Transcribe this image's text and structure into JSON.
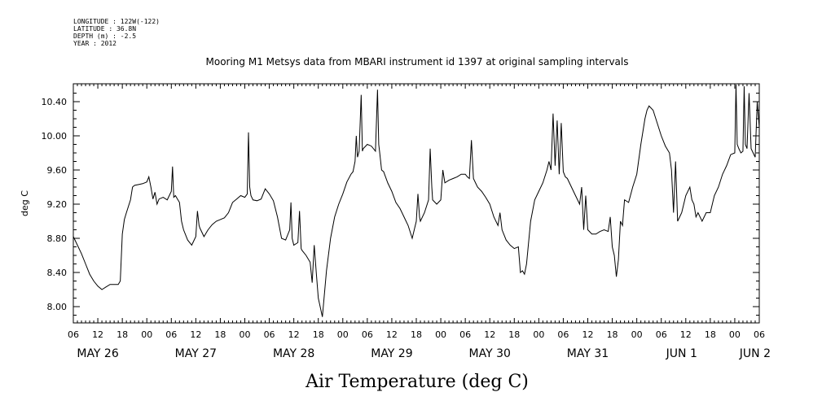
{
  "header": {
    "longitude": "LONGITUDE : 122W(-122)",
    "latitude": "LATITUDE : 36.8N",
    "depth": "DEPTH (m) : -2.5",
    "year": "YEAR : 2012"
  },
  "chart_data": {
    "type": "line",
    "title": "Mooring M1 Metsys data from MBARI instrument id 1397 at original sampling intervals",
    "xlabel": "Air Temperature (deg C)",
    "ylabel": "deg C",
    "ylim": [
      7.84,
      10.62
    ],
    "xlim": [
      6,
      174
    ],
    "x_units": "hours since May 26 00:00 (2012)",
    "yticks": [
      "8.00",
      "8.40",
      "8.80",
      "9.20",
      "9.60",
      "10.00",
      "10.40"
    ],
    "hour_ticks": [
      "06",
      "12",
      "18",
      "00",
      "06",
      "12",
      "18",
      "00",
      "06",
      "12",
      "18",
      "00",
      "06",
      "12",
      "18",
      "00",
      "06",
      "12",
      "18",
      "00",
      "06",
      "12",
      "18",
      "00",
      "06",
      "12",
      "18",
      "00",
      "06"
    ],
    "day_labels": [
      "MAY 26",
      "MAY 27",
      "MAY 28",
      "MAY 29",
      "MAY 30",
      "MAY 31",
      "JUN  1",
      "JUN  2"
    ],
    "grid": false,
    "series": [
      {
        "values": [
          [
            6.0,
            8.82
          ],
          [
            7.0,
            8.72
          ],
          [
            8.0,
            8.62
          ],
          [
            9.0,
            8.5
          ],
          [
            10.0,
            8.38
          ],
          [
            11.0,
            8.3
          ],
          [
            12.0,
            8.24
          ],
          [
            13.0,
            8.2
          ],
          [
            14.0,
            8.23
          ],
          [
            15.0,
            8.26
          ],
          [
            16.0,
            8.26
          ],
          [
            17.0,
            8.26
          ],
          [
            17.5,
            8.3
          ],
          [
            18.0,
            8.85
          ],
          [
            18.5,
            9.02
          ],
          [
            19.0,
            9.1
          ],
          [
            20.0,
            9.25
          ],
          [
            20.5,
            9.4
          ],
          [
            21.0,
            9.42
          ],
          [
            22.0,
            9.43
          ],
          [
            23.0,
            9.44
          ],
          [
            24.0,
            9.46
          ],
          [
            24.5,
            9.52
          ],
          [
            25.0,
            9.4
          ],
          [
            25.5,
            9.26
          ],
          [
            26.0,
            9.34
          ],
          [
            26.5,
            9.2
          ],
          [
            27.0,
            9.26
          ],
          [
            28.0,
            9.28
          ],
          [
            29.0,
            9.25
          ],
          [
            30.0,
            9.35
          ],
          [
            30.3,
            9.64
          ],
          [
            30.6,
            9.28
          ],
          [
            31.0,
            9.3
          ],
          [
            32.0,
            9.22
          ],
          [
            32.5,
            9.0
          ],
          [
            33.0,
            8.9
          ],
          [
            34.0,
            8.78
          ],
          [
            35.0,
            8.72
          ],
          [
            36.0,
            8.82
          ],
          [
            36.4,
            9.12
          ],
          [
            36.8,
            8.95
          ],
          [
            37.0,
            8.92
          ],
          [
            38.0,
            8.82
          ],
          [
            39.0,
            8.9
          ],
          [
            40.0,
            8.96
          ],
          [
            41.0,
            9.0
          ],
          [
            42.0,
            9.02
          ],
          [
            43.0,
            9.04
          ],
          [
            44.0,
            9.1
          ],
          [
            45.0,
            9.22
          ],
          [
            46.0,
            9.26
          ],
          [
            47.0,
            9.3
          ],
          [
            48.0,
            9.28
          ],
          [
            48.6,
            9.32
          ],
          [
            48.9,
            10.04
          ],
          [
            49.2,
            9.4
          ],
          [
            49.5,
            9.3
          ],
          [
            50.0,
            9.25
          ],
          [
            51.0,
            9.24
          ],
          [
            52.0,
            9.26
          ],
          [
            53.0,
            9.38
          ],
          [
            54.0,
            9.32
          ],
          [
            55.0,
            9.24
          ],
          [
            56.0,
            9.05
          ],
          [
            57.0,
            8.8
          ],
          [
            58.0,
            8.78
          ],
          [
            59.0,
            8.9
          ],
          [
            59.3,
            9.22
          ],
          [
            59.6,
            8.8
          ],
          [
            60.0,
            8.72
          ],
          [
            61.0,
            8.75
          ],
          [
            61.4,
            9.12
          ],
          [
            61.8,
            8.68
          ],
          [
            62.0,
            8.66
          ],
          [
            63.0,
            8.6
          ],
          [
            64.0,
            8.52
          ],
          [
            64.5,
            8.28
          ],
          [
            65.0,
            8.72
          ],
          [
            65.5,
            8.4
          ],
          [
            66.0,
            8.1
          ],
          [
            67.0,
            7.88
          ],
          [
            68.0,
            8.42
          ],
          [
            69.0,
            8.8
          ],
          [
            70.0,
            9.05
          ],
          [
            71.0,
            9.2
          ],
          [
            72.0,
            9.32
          ],
          [
            73.0,
            9.46
          ],
          [
            74.0,
            9.55
          ],
          [
            74.5,
            9.58
          ],
          [
            75.0,
            9.7
          ],
          [
            75.3,
            10.0
          ],
          [
            75.6,
            9.75
          ],
          [
            76.0,
            9.82
          ],
          [
            76.5,
            10.48
          ],
          [
            76.8,
            9.82
          ],
          [
            77.0,
            9.85
          ],
          [
            78.0,
            9.9
          ],
          [
            79.0,
            9.88
          ],
          [
            80.0,
            9.82
          ],
          [
            80.5,
            10.54
          ],
          [
            80.8,
            9.9
          ],
          [
            81.0,
            9.82
          ],
          [
            81.5,
            9.6
          ],
          [
            82.0,
            9.58
          ],
          [
            83.0,
            9.45
          ],
          [
            84.0,
            9.35
          ],
          [
            85.0,
            9.22
          ],
          [
            86.0,
            9.15
          ],
          [
            87.0,
            9.05
          ],
          [
            88.0,
            8.95
          ],
          [
            89.0,
            8.8
          ],
          [
            89.5,
            8.9
          ],
          [
            90.0,
            9.0
          ],
          [
            90.4,
            9.32
          ],
          [
            90.8,
            9.05
          ],
          [
            91.0,
            9.0
          ],
          [
            92.0,
            9.1
          ],
          [
            93.0,
            9.25
          ],
          [
            93.4,
            9.85
          ],
          [
            93.8,
            9.4
          ],
          [
            94.0,
            9.25
          ],
          [
            95.0,
            9.2
          ],
          [
            96.0,
            9.25
          ],
          [
            96.5,
            9.6
          ],
          [
            97.0,
            9.45
          ],
          [
            98.0,
            9.48
          ],
          [
            99.0,
            9.5
          ],
          [
            100.0,
            9.52
          ],
          [
            101.0,
            9.55
          ],
          [
            102.0,
            9.55
          ],
          [
            102.5,
            9.52
          ],
          [
            103.0,
            9.5
          ],
          [
            103.5,
            9.95
          ],
          [
            104.0,
            9.5
          ],
          [
            104.5,
            9.45
          ],
          [
            105.0,
            9.4
          ],
          [
            106.0,
            9.35
          ],
          [
            107.0,
            9.28
          ],
          [
            108.0,
            9.2
          ],
          [
            109.0,
            9.05
          ],
          [
            110.0,
            8.95
          ],
          [
            110.5,
            9.1
          ],
          [
            111.0,
            8.9
          ],
          [
            112.0,
            8.78
          ],
          [
            113.0,
            8.72
          ],
          [
            114.0,
            8.68
          ],
          [
            115.0,
            8.7
          ],
          [
            115.5,
            8.4
          ],
          [
            116.0,
            8.42
          ],
          [
            116.5,
            8.38
          ],
          [
            117.0,
            8.5
          ],
          [
            118.0,
            9.0
          ],
          [
            119.0,
            9.25
          ],
          [
            120.0,
            9.35
          ],
          [
            121.0,
            9.45
          ],
          [
            122.0,
            9.6
          ],
          [
            122.5,
            9.7
          ],
          [
            123.0,
            9.6
          ],
          [
            123.5,
            10.26
          ],
          [
            124.0,
            9.65
          ],
          [
            124.5,
            10.18
          ],
          [
            125.0,
            9.55
          ],
          [
            125.5,
            10.15
          ],
          [
            126.0,
            9.58
          ],
          [
            126.5,
            9.52
          ],
          [
            127.0,
            9.5
          ],
          [
            128.0,
            9.4
          ],
          [
            129.0,
            9.3
          ],
          [
            130.0,
            9.2
          ],
          [
            130.5,
            9.4
          ],
          [
            131.0,
            8.9
          ],
          [
            131.5,
            9.3
          ],
          [
            132.0,
            8.9
          ],
          [
            133.0,
            8.85
          ],
          [
            134.0,
            8.85
          ],
          [
            135.0,
            8.88
          ],
          [
            136.0,
            8.9
          ],
          [
            137.0,
            8.88
          ],
          [
            137.5,
            9.05
          ],
          [
            138.0,
            8.7
          ],
          [
            138.5,
            8.6
          ],
          [
            139.0,
            8.35
          ],
          [
            139.5,
            8.55
          ],
          [
            140.0,
            9.0
          ],
          [
            140.5,
            8.95
          ],
          [
            141.0,
            9.25
          ],
          [
            142.0,
            9.22
          ],
          [
            143.0,
            9.4
          ],
          [
            144.0,
            9.55
          ],
          [
            145.0,
            9.9
          ],
          [
            146.0,
            10.2
          ],
          [
            146.5,
            10.3
          ],
          [
            147.0,
            10.35
          ],
          [
            148.0,
            10.3
          ],
          [
            149.0,
            10.15
          ],
          [
            150.0,
            10.0
          ],
          [
            151.0,
            9.88
          ],
          [
            152.0,
            9.8
          ],
          [
            152.5,
            9.6
          ],
          [
            153.0,
            9.1
          ],
          [
            153.5,
            9.7
          ],
          [
            154.0,
            9.0
          ],
          [
            154.5,
            9.05
          ],
          [
            155.0,
            9.1
          ],
          [
            156.0,
            9.3
          ],
          [
            157.0,
            9.4
          ],
          [
            157.5,
            9.25
          ],
          [
            158.0,
            9.2
          ],
          [
            158.5,
            9.05
          ],
          [
            159.0,
            9.1
          ],
          [
            160.0,
            9.0
          ],
          [
            160.5,
            9.05
          ],
          [
            161.0,
            9.1
          ],
          [
            162.0,
            9.1
          ],
          [
            163.0,
            9.3
          ],
          [
            164.0,
            9.4
          ],
          [
            165.0,
            9.55
          ],
          [
            166.0,
            9.65
          ],
          [
            167.0,
            9.78
          ],
          [
            168.0,
            9.8
          ],
          [
            168.3,
            10.6
          ],
          [
            168.6,
            9.9
          ],
          [
            169.0,
            9.85
          ],
          [
            169.5,
            9.8
          ],
          [
            170.0,
            9.82
          ],
          [
            170.3,
            10.58
          ],
          [
            170.6,
            9.9
          ],
          [
            171.0,
            9.85
          ],
          [
            171.5,
            10.5
          ],
          [
            172.0,
            9.85
          ],
          [
            172.5,
            9.8
          ],
          [
            173.0,
            9.75
          ],
          [
            173.5,
            10.4
          ],
          [
            174.0,
            10.1
          ]
        ]
      }
    ]
  }
}
